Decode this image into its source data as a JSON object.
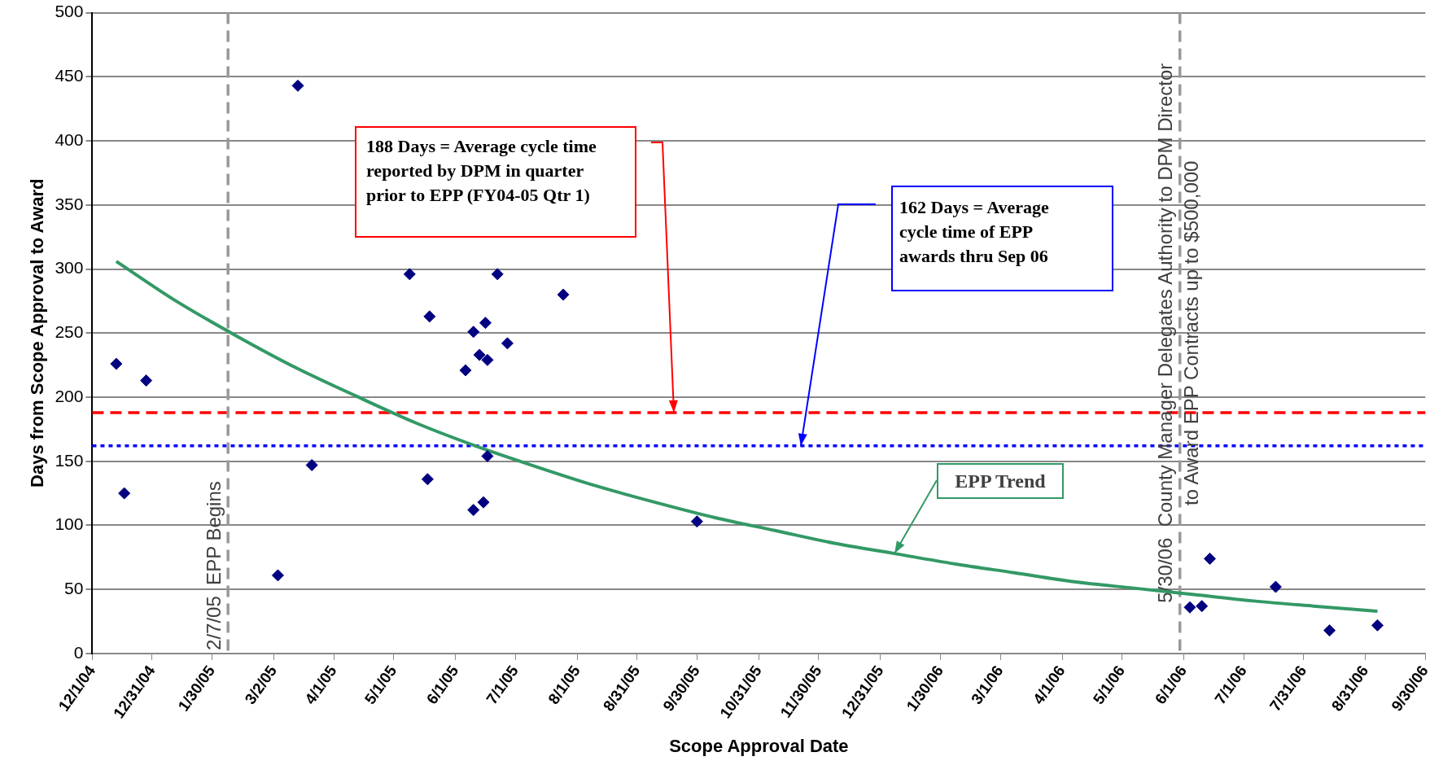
{
  "chart_data": {
    "type": "scatter",
    "xlabel": "Scope Approval Date",
    "ylabel": "Days from Scope Approval to Award",
    "xlim": [
      "2004-12-01",
      "2006-09-30"
    ],
    "xticks": [
      {
        "value": "2004-12-01",
        "label": "12/1/04"
      },
      {
        "value": "2004-12-31",
        "label": "12/31/04"
      },
      {
        "value": "2005-01-30",
        "label": "1/30/05"
      },
      {
        "value": "2005-03-02",
        "label": "3/2/05"
      },
      {
        "value": "2005-04-01",
        "label": "4/1/05"
      },
      {
        "value": "2005-05-01",
        "label": "5/1/05"
      },
      {
        "value": "2005-06-01",
        "label": "6/1/05"
      },
      {
        "value": "2005-07-01",
        "label": "7/1/05"
      },
      {
        "value": "2005-08-01",
        "label": "8/1/05"
      },
      {
        "value": "2005-08-31",
        "label": "8/31/05"
      },
      {
        "value": "2005-09-30",
        "label": "9/30/05"
      },
      {
        "value": "2005-10-31",
        "label": "10/31/05"
      },
      {
        "value": "2005-11-30",
        "label": "11/30/05"
      },
      {
        "value": "2005-12-31",
        "label": "12/31/05"
      },
      {
        "value": "2006-01-30",
        "label": "1/30/06"
      },
      {
        "value": "2006-03-01",
        "label": "3/1/06"
      },
      {
        "value": "2006-04-01",
        "label": "4/1/06"
      },
      {
        "value": "2006-05-01",
        "label": "5/1/06"
      },
      {
        "value": "2006-06-01",
        "label": "6/1/06"
      },
      {
        "value": "2006-07-01",
        "label": "7/1/06"
      },
      {
        "value": "2006-07-31",
        "label": "7/31/06"
      },
      {
        "value": "2006-08-31",
        "label": "8/31/06"
      },
      {
        "value": "2006-09-30",
        "label": "9/30/06"
      }
    ],
    "ylim": [
      0,
      500
    ],
    "yticks": [
      0,
      50,
      100,
      150,
      200,
      250,
      300,
      350,
      400,
      450,
      500
    ],
    "grid": "y",
    "marker": "diamond",
    "series": [
      {
        "color": "#000080",
        "x": [
          "2004-12-13",
          "2004-12-28",
          "2004-12-17",
          "2005-03-14",
          "2005-03-21",
          "2005-03-04",
          "2005-05-09",
          "2005-05-19",
          "2005-05-18",
          "2005-06-22",
          "2005-06-10",
          "2005-06-16",
          "2005-06-13",
          "2005-06-17",
          "2005-06-06",
          "2005-06-27",
          "2005-06-17",
          "2005-06-10",
          "2005-06-15",
          "2005-07-25",
          "2005-09-30",
          "2006-06-04",
          "2006-06-10",
          "2006-06-14",
          "2006-07-17",
          "2006-08-13",
          "2006-09-06"
        ],
        "values": [
          226,
          213,
          125,
          443,
          147,
          61,
          296,
          263,
          136,
          296,
          251,
          258,
          233,
          229,
          221,
          242,
          154,
          112,
          118,
          280,
          103,
          36,
          37,
          74,
          52,
          18,
          22
        ]
      },
      {
        "type": "line",
        "name": "EPP Trend",
        "color": "#339966",
        "marker": "none",
        "x": [
          "2004-12-13",
          "2005-01-12",
          "2005-02-11",
          "2005-03-13",
          "2005-04-12",
          "2005-05-12",
          "2005-06-11",
          "2005-07-11",
          "2005-08-10",
          "2005-09-09",
          "2005-10-09",
          "2005-11-08",
          "2005-12-08",
          "2006-01-07",
          "2006-02-06",
          "2006-03-08",
          "2006-04-07",
          "2006-05-07",
          "2006-06-06",
          "2006-07-06",
          "2006-08-05",
          "2006-09-06"
        ],
        "values": [
          306,
          275,
          248,
          223,
          201,
          180,
          162,
          146,
          131,
          118,
          106,
          96,
          86,
          78,
          70,
          63,
          56,
          51,
          46,
          41,
          37,
          33
        ]
      }
    ],
    "ref_lines": [
      {
        "axis": "y",
        "value": 188,
        "color": "#ff0000",
        "line_style": "dashed"
      },
      {
        "axis": "y",
        "value": 162,
        "color": "#0000ff",
        "line_style": "dotted"
      },
      {
        "axis": "x",
        "value": "2005-02-07",
        "label": "2/7/05  EPP Begins",
        "color": "#999999",
        "line_style": "dashed"
      },
      {
        "axis": "x",
        "value": "2006-05-30",
        "label": "5/30/06  County Manager Delegates Authority to DPM Director\nto Award EPP Contracts up to $500,000",
        "color": "#999999",
        "line_style": "dashed"
      }
    ],
    "annotations": [
      "188 Days = Average cycle time reported by DPM in quarter prior to EPP (FY04-05 Qtr 1)",
      "162 Days = Average cycle time of EPP awards thru Sep 06"
    ]
  }
}
